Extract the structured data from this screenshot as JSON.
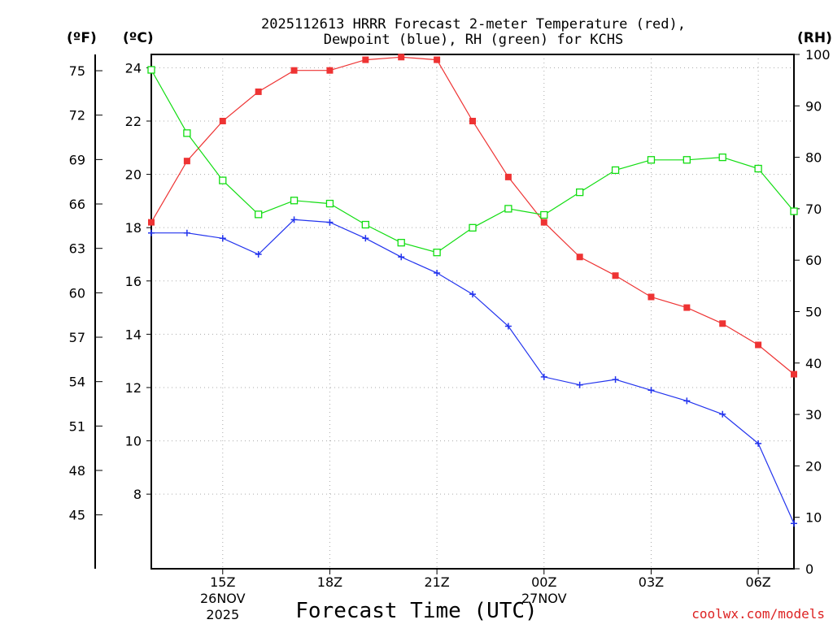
{
  "chart_data": {
    "type": "line",
    "title_line1": "2025112613 HRRR Forecast 2-meter Temperature (red),",
    "title_line2": "Dewpoint (blue), RH (green) for KCHS",
    "axis_unit_f": "(ºF)",
    "axis_unit_c": "(ºC)",
    "axis_unit_rh": "(RH)",
    "xlabel": "Forecast Time (UTC)",
    "x_hours": [
      13,
      14,
      15,
      16,
      17,
      18,
      19,
      20,
      21,
      22,
      23,
      24,
      25,
      26,
      27,
      28,
      29,
      30,
      31
    ],
    "xlim": [
      13,
      31
    ],
    "x_ticks": [
      {
        "hour": 15,
        "label": "15Z",
        "date": "26NOV",
        "year": "2025"
      },
      {
        "hour": 18,
        "label": "18Z"
      },
      {
        "hour": 21,
        "label": "21Z"
      },
      {
        "hour": 24,
        "label": "00Z",
        "date": "27NOV"
      },
      {
        "hour": 27,
        "label": "03Z"
      },
      {
        "hour": 30,
        "label": "06Z"
      }
    ],
    "ylim_c": [
      5.2,
      24.5
    ],
    "yticks_c": [
      "8",
      "10",
      "12",
      "14",
      "16",
      "18",
      "20",
      "22",
      "24"
    ],
    "yticks_f": [
      "45",
      "48",
      "51",
      "54",
      "57",
      "60",
      "63",
      "66",
      "69",
      "72",
      "75"
    ],
    "ylim_rh": [
      0,
      100
    ],
    "yticks_rh": [
      "0",
      "10",
      "20",
      "30",
      "40",
      "50",
      "60",
      "70",
      "80",
      "90",
      "100"
    ],
    "series": [
      {
        "name": "Temperature",
        "axis": "c",
        "color": "#ee3333",
        "marker": "square-filled",
        "values": [
          18.2,
          20.5,
          22.0,
          23.1,
          23.9,
          23.9,
          24.3,
          24.4,
          24.3,
          22.0,
          19.9,
          18.2,
          16.9,
          16.2,
          15.4,
          15.0,
          14.4,
          13.6,
          12.5
        ]
      },
      {
        "name": "Dewpoint",
        "axis": "c",
        "color": "#2233ee",
        "marker": "plus",
        "values": [
          17.8,
          17.8,
          17.6,
          17.0,
          18.3,
          18.2,
          17.6,
          16.9,
          16.3,
          15.5,
          14.3,
          12.4,
          12.1,
          12.3,
          11.9,
          11.5,
          11.0,
          9.9,
          6.9
        ]
      },
      {
        "name": "RH",
        "axis": "rh",
        "color": "#11dd11",
        "marker": "square-open",
        "values": [
          97,
          84.7,
          75.5,
          68.9,
          71.6,
          71.0,
          66.9,
          63.4,
          61.5,
          66.3,
          70.0,
          68.8,
          73.2,
          77.5,
          79.5,
          79.5,
          80.0,
          77.8,
          69.5
        ]
      }
    ]
  },
  "credit": "coolwx.com/models"
}
